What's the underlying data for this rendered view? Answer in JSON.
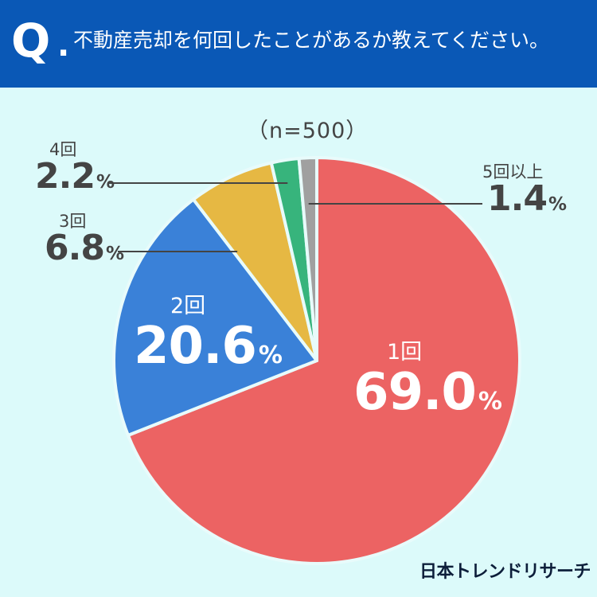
{
  "header": {
    "q_letter": "Q",
    "q_dot": ".",
    "question": "不動産売却を何回したことがあるか教えてください。"
  },
  "sample_note": "（n=500）",
  "brand": "日本トレンドリサーチ",
  "colors": {
    "header_bg": "#0a58b6",
    "page_bg": "#dcfafa"
  },
  "chart_data": {
    "type": "pie",
    "title": "",
    "unit": "%",
    "slices": [
      {
        "label": "1回",
        "value": 69.0,
        "value_text": "69.0",
        "color": "#ec6363"
      },
      {
        "label": "2回",
        "value": 20.6,
        "value_text": "20.6",
        "color": "#3a81d8"
      },
      {
        "label": "3回",
        "value": 6.8,
        "value_text": "6.8",
        "color": "#e6b843"
      },
      {
        "label": "4回",
        "value": 2.2,
        "value_text": "2.2",
        "color": "#37b47c"
      },
      {
        "label": "5回以上",
        "value": 1.4,
        "value_text": "1.4",
        "color": "#a0a0a0"
      }
    ]
  }
}
